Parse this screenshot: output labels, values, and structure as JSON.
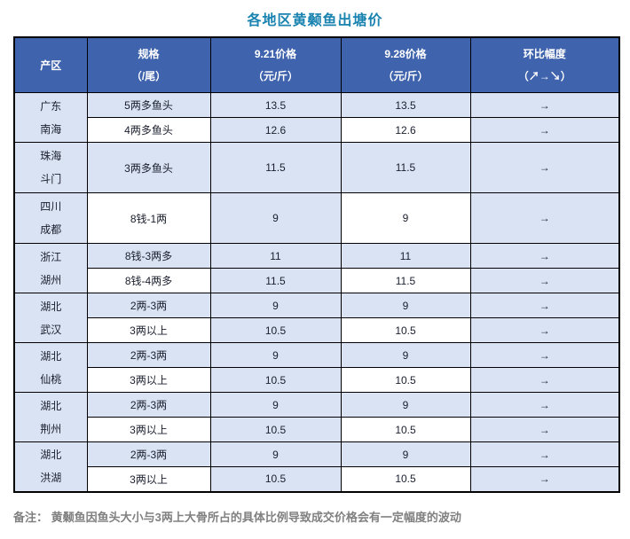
{
  "title": "各地区黄颡鱼出塘价",
  "colors": {
    "title_color": "#1a83b0",
    "header_bg": "#3f63ad",
    "header_text": "#ffffff",
    "row_blue": "#dae3f3",
    "row_white": "#ffffff",
    "border": "#000000",
    "body_text": "#1a1f2e",
    "trend_arrow": "#222a40",
    "note_text": "#808080"
  },
  "table": {
    "headers": [
      {
        "line1": "产区"
      },
      {
        "line1": "规格",
        "line2": "（/尾）"
      },
      {
        "line1": "9.21价格",
        "line2": "（元/斤）"
      },
      {
        "line1": "9.28价格",
        "line2": "（元/斤）"
      },
      {
        "line1": "环比幅度",
        "line2": "（↗→↘）"
      }
    ],
    "regions": [
      {
        "name_lines": [
          "广东",
          "南海"
        ],
        "rows": [
          {
            "spec": "5两多鱼头",
            "price_921": "13.5",
            "price_928": "13.5",
            "trend": "→",
            "variant": "blue",
            "tall": false
          },
          {
            "spec": "4两多鱼头",
            "price_921": "12.6",
            "price_928": "12.6",
            "trend": "→",
            "variant": "white",
            "tall": false
          }
        ]
      },
      {
        "name_lines": [
          "珠海",
          "斗门"
        ],
        "rows": [
          {
            "spec": "3两多鱼头",
            "price_921": "11.5",
            "price_928": "11.5",
            "trend": "→",
            "variant": "blue",
            "tall": true
          }
        ]
      },
      {
        "name_lines": [
          "四川",
          "成都"
        ],
        "rows": [
          {
            "spec": "8钱-1两",
            "price_921": "9",
            "price_928": "9",
            "trend": "→",
            "variant": "white",
            "tall": true
          }
        ]
      },
      {
        "name_lines": [
          "浙江",
          "湖州"
        ],
        "rows": [
          {
            "spec": "8钱-3两多",
            "price_921": "11",
            "price_928": "11",
            "trend": "→",
            "variant": "blue",
            "tall": false
          },
          {
            "spec": "8钱-4两多",
            "price_921": "11.5",
            "price_928": "11.5",
            "trend": "→",
            "variant": "white",
            "tall": false
          }
        ]
      },
      {
        "name_lines": [
          "湖北",
          "武汉"
        ],
        "rows": [
          {
            "spec": "2两-3两",
            "price_921": "9",
            "price_928": "9",
            "trend": "→",
            "variant": "blue",
            "tall": false
          },
          {
            "spec": "3两以上",
            "price_921": "10.5",
            "price_928": "10.5",
            "trend": "→",
            "variant": "white",
            "tall": false
          }
        ]
      },
      {
        "name_lines": [
          "湖北",
          "仙桃"
        ],
        "rows": [
          {
            "spec": "2两-3两",
            "price_921": "9",
            "price_928": "9",
            "trend": "→",
            "variant": "blue",
            "tall": false
          },
          {
            "spec": "3两以上",
            "price_921": "10.5",
            "price_928": "10.5",
            "trend": "→",
            "variant": "white",
            "tall": false
          }
        ]
      },
      {
        "name_lines": [
          "湖北",
          "荆州"
        ],
        "rows": [
          {
            "spec": "2两-3两",
            "price_921": "9",
            "price_928": "9",
            "trend": "→",
            "variant": "blue",
            "tall": false
          },
          {
            "spec": "3两以上",
            "price_921": "10.5",
            "price_928": "10.5",
            "trend": "→",
            "variant": "white",
            "tall": false
          }
        ]
      },
      {
        "name_lines": [
          "湖北",
          "洪湖"
        ],
        "rows": [
          {
            "spec": "2两-3两",
            "price_921": "9",
            "price_928": "9",
            "trend": "→",
            "variant": "blue",
            "tall": false
          },
          {
            "spec": "3两以上",
            "price_921": "10.5",
            "price_928": "10.5",
            "trend": "→",
            "variant": "white",
            "tall": false
          }
        ]
      }
    ]
  },
  "note": "备注： 黄颡鱼因鱼头大小与3两上大骨所占的具体比例导致成交价格会有一定幅度的波动"
}
